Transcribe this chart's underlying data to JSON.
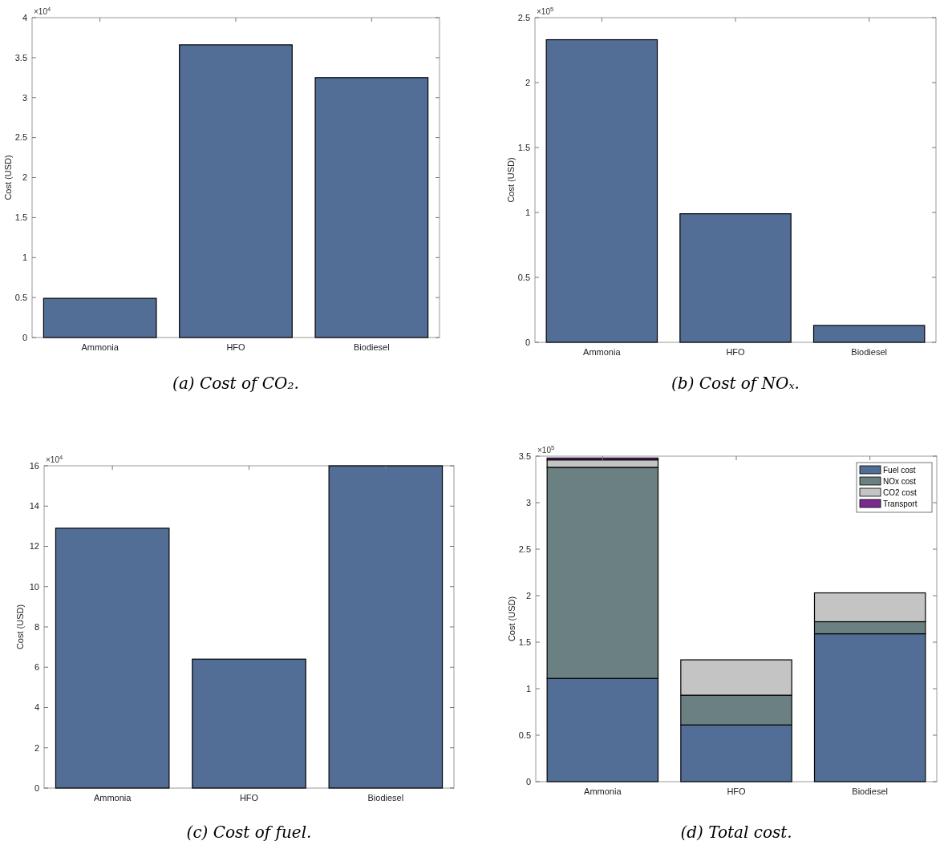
{
  "chart_data": [
    {
      "type": "bar",
      "title": "(a) Cost of CO₂.",
      "ylabel": "Cost (USD)",
      "categories": [
        "Ammonia",
        "HFO",
        "Biodiesel"
      ],
      "values": [
        0.49,
        3.66,
        3.25
      ],
      "color": "#526e96",
      "ylim": [
        0,
        4
      ],
      "yticks": [
        0,
        0.5,
        1,
        1.5,
        2,
        2.5,
        3,
        3.5,
        4
      ],
      "annotations": [
        "×10$^{4}$"
      ]
    },
    {
      "type": "bar",
      "title": "(b) Cost of NOₓ.",
      "ylabel": "Cost (USD)",
      "categories": [
        "Ammonia",
        "HFO",
        "Biodiesel"
      ],
      "values": [
        2.33,
        0.99,
        0.13
      ],
      "color": "#526e96",
      "ylim": [
        0,
        2.5
      ],
      "yticks": [
        0,
        0.5,
        1,
        1.5,
        2,
        2.5
      ],
      "annotations": [
        "×10$^{5}$"
      ]
    },
    {
      "type": "bar",
      "title": "(c) Cost of fuel.",
      "ylabel": "Cost (USD)",
      "categories": [
        "Ammonia",
        "HFO",
        "Biodiesel"
      ],
      "values": [
        12.9,
        6.4,
        16
      ],
      "color": "#526e96",
      "ylim": [
        0,
        16
      ],
      "yticks": [
        0,
        2,
        4,
        6,
        8,
        10,
        12,
        14,
        16
      ],
      "annotations": [
        "×10$^{4}$"
      ]
    },
    {
      "type": "bar",
      "stacked": true,
      "title": "(d) Total cost.",
      "ylabel": "Cost (USD)",
      "categories": [
        "Ammonia",
        "HFO",
        "Biodiesel"
      ],
      "legend": "top right",
      "series": [
        {
          "name": "Fuel cost",
          "color": "#526e96",
          "values": [
            1.11,
            0.61,
            1.59
          ]
        },
        {
          "name": "NOx cost",
          "color": "#6b8080",
          "values": [
            2.27,
            0.32,
            0.13
          ]
        },
        {
          "name": "CO2 cost",
          "color": "#c4c4c4",
          "values": [
            0.08,
            0.38,
            0.31
          ]
        },
        {
          "name": "Transport",
          "color": "#7b2a8f",
          "values": [
            0.02,
            0,
            0
          ]
        }
      ],
      "ylim": [
        0,
        3.5
      ],
      "yticks": [
        0,
        0.5,
        1,
        1.5,
        2,
        2.5,
        3,
        3.5
      ],
      "annotations": [
        "×10$^{5}$"
      ]
    }
  ]
}
